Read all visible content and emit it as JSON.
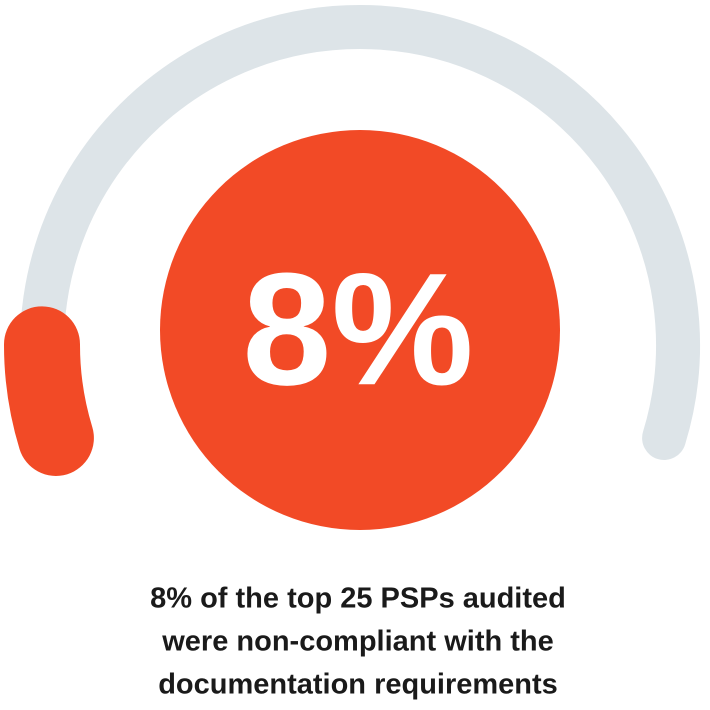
{
  "chart_data": {
    "type": "gauge",
    "values": [
      8
    ],
    "value_labels": [
      "8%"
    ],
    "ylim": [
      0,
      100
    ],
    "color": "#f24a26",
    "track_color": "#dde4e8",
    "caption": [
      "8% of the top 25 PSPs audited",
      "were non-compliant with the",
      "documentation requirements"
    ]
  }
}
